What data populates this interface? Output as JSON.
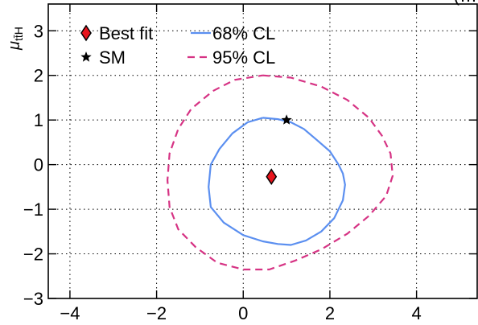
{
  "chart_data": {
    "type": "line",
    "title": "",
    "corner_fragment": "(…",
    "ylabel": {
      "main": "μ",
      "sub": "tt̄H"
    },
    "xlabel": "",
    "xlim": [
      -4.5,
      5.4
    ],
    "ylim": [
      -3,
      3.6
    ],
    "xticks": [
      -4,
      -2,
      0,
      2,
      4
    ],
    "xtick_labels": [
      "−4",
      "−2",
      "0",
      "2",
      "4"
    ],
    "yticks": [
      -3,
      -2,
      -1,
      0,
      1,
      2,
      3
    ],
    "ytick_labels": [
      "−3",
      "−2",
      "−1",
      "0",
      "1",
      "2",
      "3"
    ],
    "grid": true,
    "legend_placement": "top-left",
    "legend": [
      {
        "label": "Best fit",
        "marker": "diamond",
        "color": "#e8141c"
      },
      {
        "label": "SM",
        "marker": "star",
        "color": "#000000"
      },
      {
        "label": "68% CL",
        "style": "solid",
        "color": "#5b8ff0"
      },
      {
        "label": "95% CL",
        "style": "dashed",
        "color": "#d63384"
      }
    ],
    "best_fit": {
      "x": 0.65,
      "y": -0.27
    },
    "sm": {
      "x": 1.0,
      "y": 1.0
    },
    "series": [
      {
        "name": "68% CL",
        "color": "#5b8ff0",
        "style": "solid",
        "x": [
          0.45,
          0.8,
          1.1,
          1.4,
          1.7,
          2.0,
          2.2,
          2.3,
          2.35,
          2.3,
          2.1,
          1.8,
          1.45,
          1.1,
          0.8,
          0.45,
          0.0,
          -0.45,
          -0.75,
          -0.8,
          -0.75,
          -0.55,
          -0.25,
          0.1,
          0.45
        ],
        "y": [
          1.05,
          1.02,
          0.95,
          0.8,
          0.55,
          0.3,
          0.0,
          -0.2,
          -0.45,
          -0.8,
          -1.2,
          -1.5,
          -1.7,
          -1.8,
          -1.78,
          -1.72,
          -1.58,
          -1.3,
          -0.95,
          -0.5,
          0.0,
          0.35,
          0.7,
          0.95,
          1.05
        ]
      },
      {
        "name": "95% CL",
        "color": "#d63384",
        "style": "dashed",
        "x": [
          0.45,
          1.1,
          1.8,
          2.4,
          2.9,
          3.2,
          3.4,
          3.45,
          3.3,
          2.9,
          2.4,
          1.8,
          1.2,
          0.6,
          0.0,
          -0.6,
          -1.1,
          -1.5,
          -1.7,
          -1.75,
          -1.7,
          -1.5,
          -1.2,
          -0.7,
          -0.2,
          0.45
        ],
        "y": [
          2.0,
          1.95,
          1.75,
          1.45,
          1.05,
          0.65,
          0.25,
          -0.25,
          -0.7,
          -1.15,
          -1.55,
          -1.9,
          -2.15,
          -2.35,
          -2.35,
          -2.2,
          -1.85,
          -1.45,
          -0.95,
          -0.35,
          0.25,
          0.8,
          1.25,
          1.65,
          1.9,
          2.0
        ]
      }
    ]
  }
}
